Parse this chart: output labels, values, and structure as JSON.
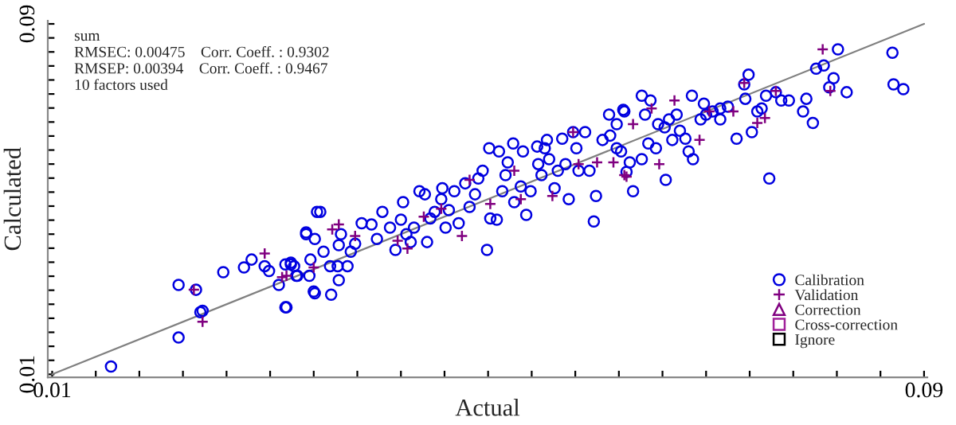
{
  "chart_data": {
    "type": "scatter",
    "xlabel": "Actual",
    "ylabel": "Calculated",
    "annotations": [
      "sum",
      "RMSEC: 0.00475    Corr. Coeff. : 0.9302",
      "RMSEP: 0.00394    Corr. Coeff. : 0.9467",
      "10 factors used"
    ],
    "xlim": [
      0.0096,
      0.0903
    ],
    "ylim": [
      0.0093,
      0.0907
    ],
    "xticks": [
      0.01,
      {
        "value": 0.014,
        "label": null
      },
      {
        "value": 0.018,
        "label": null
      },
      {
        "value": 0.022,
        "label": null
      },
      {
        "value": 0.026,
        "label": null
      },
      {
        "value": 0.03,
        "label": null
      },
      {
        "value": 0.034,
        "label": null
      },
      {
        "value": 0.038,
        "label": null
      },
      {
        "value": 0.042,
        "label": null
      },
      {
        "value": 0.046,
        "label": null
      },
      {
        "value": 0.05,
        "label": null
      },
      {
        "value": 0.054,
        "label": null
      },
      {
        "value": 0.058,
        "label": null
      },
      {
        "value": 0.062,
        "label": null
      },
      {
        "value": 0.066,
        "label": null
      },
      {
        "value": 0.07,
        "label": null
      },
      {
        "value": 0.074,
        "label": null
      },
      {
        "value": 0.078,
        "label": null
      },
      {
        "value": 0.082,
        "label": null
      },
      {
        "value": 0.086,
        "label": null
      },
      0.09
    ],
    "yticks": [
      0.01,
      {
        "value": 0.0132,
        "label": null
      },
      {
        "value": 0.0164,
        "label": null
      },
      {
        "value": 0.0196,
        "label": null
      },
      {
        "value": 0.0228,
        "label": null
      },
      {
        "value": 0.026,
        "label": null
      },
      {
        "value": 0.0292,
        "label": null
      },
      {
        "value": 0.0324,
        "label": null
      },
      {
        "value": 0.0356,
        "label": null
      },
      {
        "value": 0.0388,
        "label": null
      },
      {
        "value": 0.042,
        "label": null
      },
      {
        "value": 0.0452,
        "label": null
      },
      {
        "value": 0.0484,
        "label": null
      },
      {
        "value": 0.0516,
        "label": null
      },
      {
        "value": 0.0548,
        "label": null
      },
      {
        "value": 0.058,
        "label": null
      },
      {
        "value": 0.0612,
        "label": null
      },
      {
        "value": 0.0644,
        "label": null
      },
      {
        "value": 0.0676,
        "label": null
      },
      {
        "value": 0.0708,
        "label": null
      },
      {
        "value": 0.074,
        "label": null
      },
      {
        "value": 0.0772,
        "label": null
      },
      {
        "value": 0.0804,
        "label": null
      },
      {
        "value": 0.0836,
        "label": null
      },
      {
        "value": 0.0868,
        "label": null
      },
      0.09
    ],
    "legend": "bottom right",
    "series": [
      {
        "type": "line",
        "color": "#808080",
        "line_style": "solid",
        "marker": "none",
        "x": [
          0.01,
          0.09
        ],
        "values": [
          0.01,
          0.09
        ]
      },
      {
        "name": "Calibration",
        "color": "#0000e0",
        "marker": "circle",
        "x": [
          0.0154,
          0.0216,
          0.0216,
          0.0232,
          0.0236,
          0.0238,
          0.0257,
          0.0276,
          0.0283,
          0.0295,
          0.0299,
          0.0308,
          0.0314,
          0.0314,
          0.0319,
          0.0324,
          0.0333,
          0.0337,
          0.0336,
          0.034,
          0.0343,
          0.0341,
          0.0315,
          0.0319,
          0.0322,
          0.0325,
          0.0333,
          0.0341,
          0.0346,
          0.0349,
          0.0355,
          0.0356,
          0.0362,
          0.0363,
          0.0363,
          0.0365,
          0.0371,
          0.0374,
          0.0378,
          0.0384,
          0.0393,
          0.0398,
          0.0403,
          0.041,
          0.0415,
          0.042,
          0.0422,
          0.0425,
          0.0429,
          0.0432,
          0.0437,
          0.0442,
          0.0444,
          0.0447,
          0.0451,
          0.0457,
          0.0458,
          0.0461,
          0.0464,
          0.0469,
          0.0473,
          0.0479,
          0.0483,
          0.0488,
          0.0491,
          0.0495,
          0.0499,
          0.0501,
          0.0502,
          0.0508,
          0.051,
          0.0513,
          0.0516,
          0.0518,
          0.0523,
          0.0524,
          0.053,
          0.0532,
          0.0535,
          0.0539,
          0.0545,
          0.0546,
          0.0549,
          0.0552,
          0.0554,
          0.0556,
          0.0561,
          0.0564,
          0.0568,
          0.0571,
          0.0574,
          0.0578,
          0.0581,
          0.0583,
          0.0589,
          0.0593,
          0.0597,
          0.0599,
          0.0605,
          0.0611,
          0.0612,
          0.0618,
          0.0624,
          0.063,
          0.0633,
          0.0618,
          0.0625,
          0.0622,
          0.0627,
          0.0641,
          0.0641,
          0.0644,
          0.0649,
          0.0647,
          0.0654,
          0.0656,
          0.0662,
          0.0663,
          0.0666,
          0.0669,
          0.0673,
          0.0676,
          0.0681,
          0.0684,
          0.0687,
          0.0688,
          0.0695,
          0.0698,
          0.07,
          0.0706,
          0.0713,
          0.0713,
          0.072,
          0.0728,
          0.0735,
          0.0736,
          0.0739,
          0.0742,
          0.0747,
          0.0751,
          0.0755,
          0.0758,
          0.0764,
          0.0769,
          0.0776,
          0.0789,
          0.0792,
          0.0798,
          0.0801,
          0.0808,
          0.0813,
          0.0817,
          0.0821,
          0.0829,
          0.0871,
          0.0872,
          0.0881
        ],
        "values": [
          0.0118,
          0.0304,
          0.0184,
          0.0293,
          0.0242,
          0.0245,
          0.0333,
          0.0344,
          0.0362,
          0.0347,
          0.0336,
          0.0304,
          0.0253,
          0.0351,
          0.0351,
          0.0325,
          0.042,
          0.0362,
          0.0325,
          0.0289,
          0.0471,
          0.0409,
          0.0253,
          0.0355,
          0.0347,
          0.0325,
          0.0424,
          0.0285,
          0.0471,
          0.038,
          0.0347,
          0.0282,
          0.0347,
          0.0315,
          0.0395,
          0.042,
          0.0347,
          0.038,
          0.0398,
          0.0445,
          0.0442,
          0.0409,
          0.0471,
          0.0435,
          0.0384,
          0.0453,
          0.0493,
          0.042,
          0.0402,
          0.0435,
          0.0518,
          0.0511,
          0.0402,
          0.0456,
          0.0471,
          0.05,
          0.0525,
          0.0435,
          0.0475,
          0.0518,
          0.0445,
          0.0536,
          0.0482,
          0.0511,
          0.0547,
          0.0565,
          0.0384,
          0.0616,
          0.0456,
          0.0453,
          0.0609,
          0.0518,
          0.0555,
          0.0584,
          0.0627,
          0.0493,
          0.0529,
          0.0609,
          0.0464,
          0.0518,
          0.062,
          0.058,
          0.0555,
          0.0616,
          0.0635,
          0.0591,
          0.0525,
          0.0565,
          0.0638,
          0.058,
          0.05,
          0.0653,
          0.0616,
          0.0565,
          0.0653,
          0.0565,
          0.0449,
          0.0507,
          0.0635,
          0.0693,
          0.0645,
          0.0616,
          0.0704,
          0.0584,
          0.0518,
          0.0671,
          0.07,
          0.0609,
          0.0562,
          0.0736,
          0.0591,
          0.0693,
          0.0725,
          0.0627,
          0.0616,
          0.0671,
          0.0664,
          0.0544,
          0.0682,
          0.0635,
          0.0693,
          0.0656,
          0.0638,
          0.0609,
          0.0736,
          0.0591,
          0.0682,
          0.0718,
          0.0693,
          0.07,
          0.0682,
          0.0707,
          0.0711,
          0.0638,
          0.0762,
          0.0729,
          0.0784,
          0.0653,
          0.07,
          0.0707,
          0.0736,
          0.0547,
          0.0744,
          0.0725,
          0.0725,
          0.07,
          0.0729,
          0.0674,
          0.0798,
          0.0805,
          0.0755,
          0.0776,
          0.0842,
          0.0744,
          0.0834,
          0.0762,
          0.0751
        ]
      },
      {
        "name": "Validation",
        "color": "#800080",
        "marker": "cross",
        "x": [
          0.023,
          0.0238,
          0.0295,
          0.0311,
          0.034,
          0.0315,
          0.0357,
          0.0363,
          0.0378,
          0.0417,
          0.0426,
          0.0441,
          0.0457,
          0.0476,
          0.0483,
          0.0502,
          0.0524,
          0.053,
          0.0559,
          0.0578,
          0.0583,
          0.06,
          0.0615,
          0.0625,
          0.0633,
          0.0627,
          0.0657,
          0.0671,
          0.065,
          0.0694,
          0.0703,
          0.0725,
          0.0735,
          0.0747,
          0.0754,
          0.0764,
          0.0807,
          0.0814
        ],
        "values": [
          0.0293,
          0.022,
          0.0376,
          0.0322,
          0.0344,
          0.0325,
          0.0431,
          0.0442,
          0.0416,
          0.0405,
          0.0387,
          0.046,
          0.0478,
          0.0416,
          0.0544,
          0.0489,
          0.0565,
          0.05,
          0.0507,
          0.0653,
          0.058,
          0.0584,
          0.0584,
          0.0555,
          0.0671,
          0.0551,
          0.058,
          0.0725,
          0.0707,
          0.0635,
          0.07,
          0.07,
          0.0765,
          0.0674,
          0.0685,
          0.0747,
          0.0842,
          0.0747
        ]
      },
      {
        "name": "Correction",
        "color": "#800080",
        "marker": "triangle"
      },
      {
        "name": "Cross-correction",
        "color": "#a0209a",
        "marker": "square"
      },
      {
        "name": "Ignore",
        "color": "#000000",
        "marker": "square"
      }
    ]
  }
}
